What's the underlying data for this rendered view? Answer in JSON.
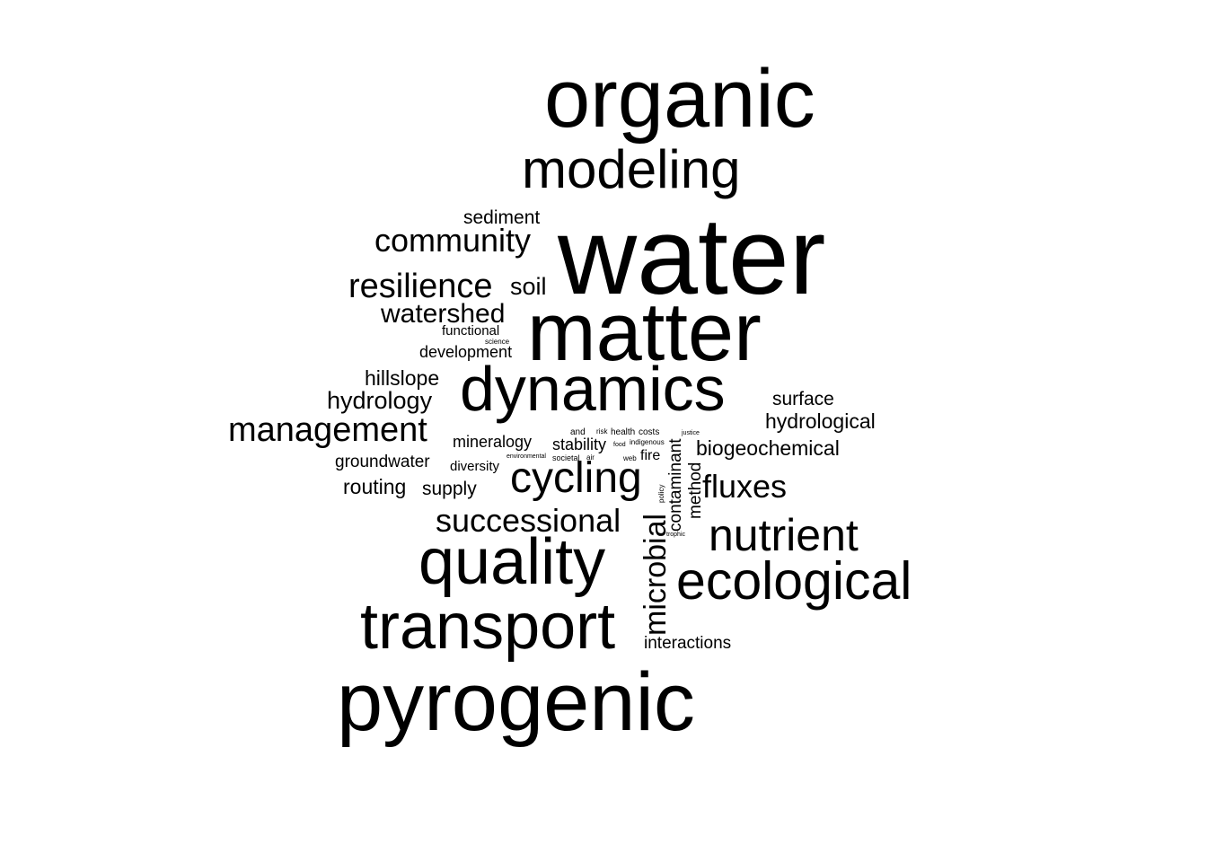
{
  "word_cloud": {
    "text_color": "#000000",
    "background": "#ffffff",
    "words": [
      {
        "text": "organic",
        "orientation": "horizontal"
      },
      {
        "text": "modeling",
        "orientation": "horizontal"
      },
      {
        "text": "water",
        "orientation": "horizontal"
      },
      {
        "text": "sediment",
        "orientation": "horizontal"
      },
      {
        "text": "community",
        "orientation": "horizontal"
      },
      {
        "text": "resilience",
        "orientation": "horizontal"
      },
      {
        "text": "soil",
        "orientation": "horizontal"
      },
      {
        "text": "matter",
        "orientation": "horizontal"
      },
      {
        "text": "watershed",
        "orientation": "horizontal"
      },
      {
        "text": "functional",
        "orientation": "horizontal"
      },
      {
        "text": "science",
        "orientation": "horizontal"
      },
      {
        "text": "development",
        "orientation": "horizontal"
      },
      {
        "text": "hillslope",
        "orientation": "horizontal"
      },
      {
        "text": "dynamics",
        "orientation": "horizontal"
      },
      {
        "text": "hydrology",
        "orientation": "horizontal"
      },
      {
        "text": "surface",
        "orientation": "horizontal"
      },
      {
        "text": "hydrological",
        "orientation": "horizontal"
      },
      {
        "text": "management",
        "orientation": "horizontal"
      },
      {
        "text": "and",
        "orientation": "horizontal"
      },
      {
        "text": "risk",
        "orientation": "horizontal"
      },
      {
        "text": "health",
        "orientation": "horizontal"
      },
      {
        "text": "costs",
        "orientation": "horizontal"
      },
      {
        "text": "justice",
        "orientation": "horizontal"
      },
      {
        "text": "mineralogy",
        "orientation": "horizontal"
      },
      {
        "text": "stability",
        "orientation": "horizontal"
      },
      {
        "text": "food",
        "orientation": "horizontal"
      },
      {
        "text": "indigenous",
        "orientation": "horizontal"
      },
      {
        "text": "biogeochemical",
        "orientation": "horizontal"
      },
      {
        "text": "environmental",
        "orientation": "horizontal"
      },
      {
        "text": "societal",
        "orientation": "horizontal"
      },
      {
        "text": "air",
        "orientation": "horizontal"
      },
      {
        "text": "web",
        "orientation": "horizontal"
      },
      {
        "text": "fire",
        "orientation": "horizontal"
      },
      {
        "text": "groundwater",
        "orientation": "horizontal"
      },
      {
        "text": "diversity",
        "orientation": "horizontal"
      },
      {
        "text": "cycling",
        "orientation": "horizontal"
      },
      {
        "text": "routing",
        "orientation": "horizontal"
      },
      {
        "text": "supply",
        "orientation": "horizontal"
      },
      {
        "text": "fluxes",
        "orientation": "horizontal"
      },
      {
        "text": "successional",
        "orientation": "horizontal"
      },
      {
        "text": "nutrient",
        "orientation": "horizontal"
      },
      {
        "text": "trophic",
        "orientation": "horizontal"
      },
      {
        "text": "quality",
        "orientation": "horizontal"
      },
      {
        "text": "ecological",
        "orientation": "horizontal"
      },
      {
        "text": "transport",
        "orientation": "horizontal"
      },
      {
        "text": "interactions",
        "orientation": "horizontal"
      },
      {
        "text": "pyrogenic",
        "orientation": "horizontal"
      },
      {
        "text": "contaminant",
        "orientation": "vertical"
      },
      {
        "text": "method",
        "orientation": "vertical"
      },
      {
        "text": "policy",
        "orientation": "vertical"
      },
      {
        "text": "microbial",
        "orientation": "vertical"
      }
    ]
  }
}
